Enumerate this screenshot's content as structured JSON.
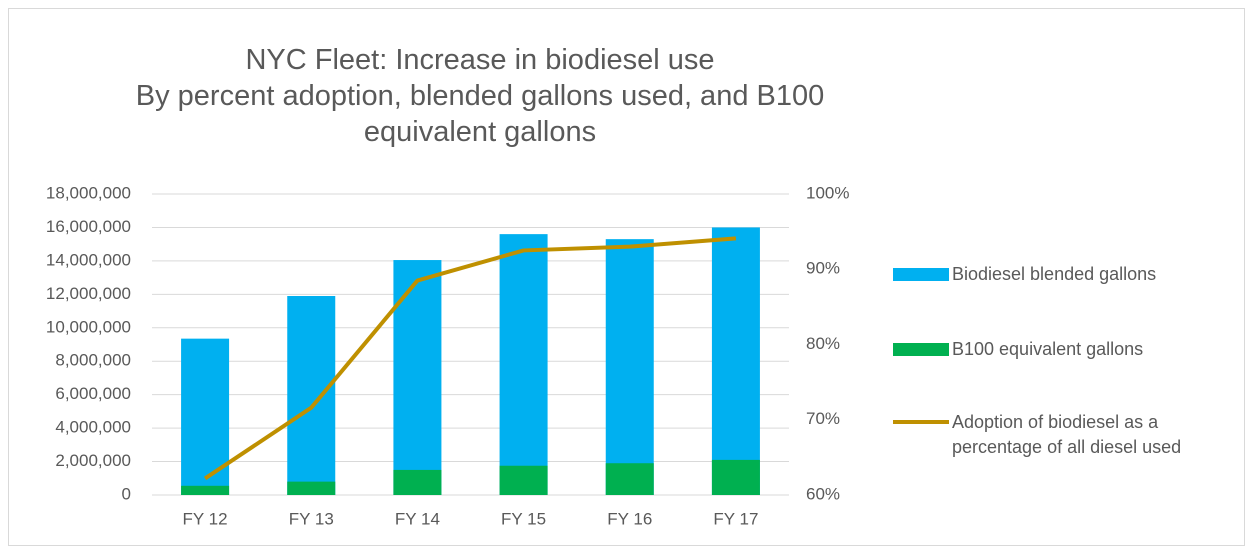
{
  "chart_data": {
    "type": "bar-line",
    "title": "NYC Fleet: Increase in biodiesel use",
    "subtitle": "By percent adoption, blended gallons used, and B100 equivalent gallons",
    "categories": [
      "FY 12",
      "FY 13",
      "FY 14",
      "FY 15",
      "FY 16",
      "FY 17"
    ],
    "series": [
      {
        "name": "Biodiesel blended gallons",
        "color": "#00b0f0",
        "kind": "bar",
        "values": [
          9350000,
          11900000,
          14050000,
          15600000,
          15300000,
          16000000
        ]
      },
      {
        "name": "B100 equivalent gallons",
        "color": "#00b050",
        "kind": "bar",
        "values": [
          550000,
          800000,
          1500000,
          1750000,
          1900000,
          2100000
        ]
      },
      {
        "name": "Adoption of biodiesel as a percentage of all diesel used",
        "color": "#bf9000",
        "kind": "line",
        "axis": "y2",
        "values": [
          62.2,
          71.6,
          88.5,
          92.5,
          93,
          94.1
        ]
      }
    ],
    "ylim": [
      0,
      18000000
    ],
    "yticks": [
      0,
      {
        "value": 2000000,
        "label": "2,000,000"
      },
      {
        "value": 4000000,
        "label": "4,000,000"
      },
      {
        "value": 6000000,
        "label": "6,000,000"
      },
      {
        "value": 8000000,
        "label": "8,000,000"
      },
      {
        "value": 10000000,
        "label": "10,000,000"
      },
      {
        "value": 12000000,
        "label": "12,000,000"
      },
      {
        "value": 14000000,
        "label": "14,000,000"
      },
      {
        "value": 16000000,
        "label": "16,000,000"
      },
      {
        "value": 18000000,
        "label": "18,000,000"
      }
    ],
    "y2lim": [
      60,
      100
    ],
    "y2ticks": [
      {
        "value": 60,
        "label": "60%"
      },
      {
        "value": 70,
        "label": "70%"
      },
      {
        "value": 80,
        "label": "80%"
      },
      {
        "value": 90,
        "label": "90%"
      },
      {
        "value": 100,
        "label": "100%"
      }
    ],
    "grid": true,
    "legend": "right"
  }
}
